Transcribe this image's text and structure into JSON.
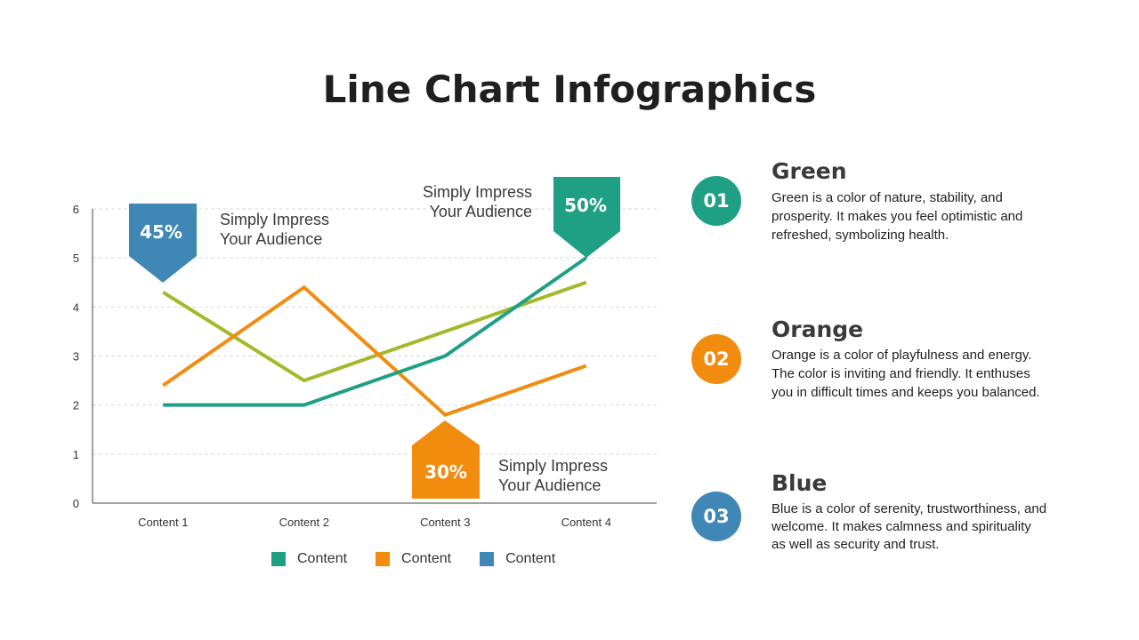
{
  "title": "Line Chart Infographics",
  "chart_data": {
    "type": "line",
    "categories": [
      "Content 1",
      "Content 2",
      "Content 3",
      "Content 4"
    ],
    "ylim": [
      0,
      6
    ],
    "yticks": [
      0,
      1,
      2,
      3,
      4,
      5,
      6
    ],
    "grid": true,
    "legend_position": "bottom",
    "series": [
      {
        "name": "Content",
        "color": "#1fa085",
        "values": [
          2,
          2,
          3,
          5
        ]
      },
      {
        "name": "Content",
        "color": "#f28c0f",
        "values": [
          2.4,
          4.4,
          1.8,
          2.8
        ]
      },
      {
        "name": "Content",
        "color": "#a4b82a",
        "values": [
          4.3,
          2.5,
          3.5,
          4.5
        ]
      }
    ],
    "legend": [
      {
        "label": "Content",
        "color": "#1fa085"
      },
      {
        "label": "Content",
        "color": "#f28c0f"
      },
      {
        "label": "Content",
        "color": "#3f87b5"
      }
    ],
    "callouts": [
      {
        "value": "45%",
        "color": "#3f87b5",
        "line1": "Simply Impress",
        "line2": "Your Audience"
      },
      {
        "value": "50%",
        "color": "#1fa085",
        "line1": "Simply Impress",
        "line2": "Your Audience"
      },
      {
        "value": "30%",
        "color": "#f28c0f",
        "line1": "Simply Impress",
        "line2": "Your Audience"
      }
    ]
  },
  "items": [
    {
      "number": "01",
      "title": "Green",
      "color": "#1fa085",
      "lines": [
        "Green is a color of nature, stability, and",
        "prosperity.  It makes you feel optimistic and",
        "refreshed, symbolizing health."
      ]
    },
    {
      "number": "02",
      "title": "Orange",
      "color": "#f28c0f",
      "lines": [
        "Orange is a color of playfulness and energy.",
        "The color is inviting and friendly. It enthuses",
        "you in difficult times and keeps  you balanced."
      ]
    },
    {
      "number": "03",
      "title": "Blue",
      "color": "#3f87b5",
      "lines": [
        "Blue is a color of serenity, trustworthiness,  and",
        "welcome. It makes calmness and spirituality",
        "as well as security and trust."
      ]
    }
  ]
}
